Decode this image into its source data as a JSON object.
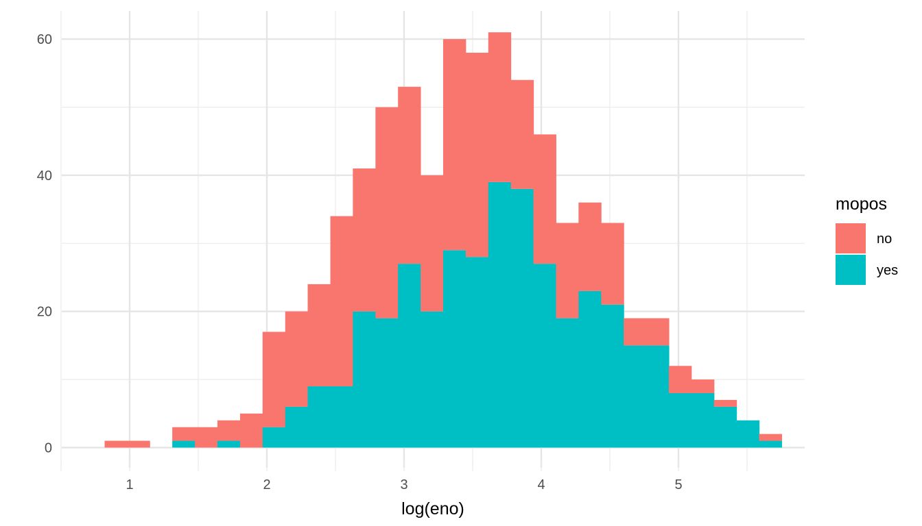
{
  "chart_data": {
    "type": "bar",
    "stacked": true,
    "title": "",
    "xlabel": "log(eno)",
    "ylabel": "",
    "bin_width": 0.1645,
    "x_bin_centers": [
      0.9,
      1.064,
      1.229,
      1.393,
      1.558,
      1.722,
      1.887,
      2.051,
      2.216,
      2.38,
      2.545,
      2.709,
      2.874,
      3.038,
      3.203,
      3.367,
      3.532,
      3.696,
      3.861,
      4.025,
      4.19,
      4.354,
      4.519,
      4.683,
      4.848,
      5.012,
      5.177,
      5.341,
      5.506,
      5.67
    ],
    "series": [
      {
        "name": "no",
        "color": "#F8766D",
        "values": [
          1,
          1,
          0,
          2,
          3,
          3,
          5,
          14,
          14,
          15,
          25,
          21,
          31,
          26,
          20,
          31,
          30,
          22,
          16,
          19,
          14,
          13,
          12,
          4,
          4,
          4,
          2,
          1,
          0,
          1
        ]
      },
      {
        "name": "yes",
        "color": "#00BFC4",
        "values": [
          0,
          0,
          0,
          1,
          0,
          1,
          0,
          3,
          6,
          9,
          9,
          20,
          19,
          27,
          20,
          29,
          28,
          39,
          38,
          27,
          19,
          23,
          21,
          15,
          15,
          8,
          8,
          6,
          4,
          1
        ]
      }
    ],
    "xlim": [
      0.51,
      5.94
    ],
    "ylim": [
      -3.05,
      64.05
    ],
    "x_ticks": [
      1,
      2,
      3,
      4,
      5
    ],
    "x_tick_labels": [
      "1",
      "2",
      "3",
      "4",
      "5"
    ],
    "y_ticks": [
      0,
      20,
      40,
      60
    ],
    "y_tick_labels": [
      "0",
      "20",
      "40",
      "60"
    ],
    "grid": true,
    "legend_title": "mopos",
    "legend_position": "right"
  }
}
